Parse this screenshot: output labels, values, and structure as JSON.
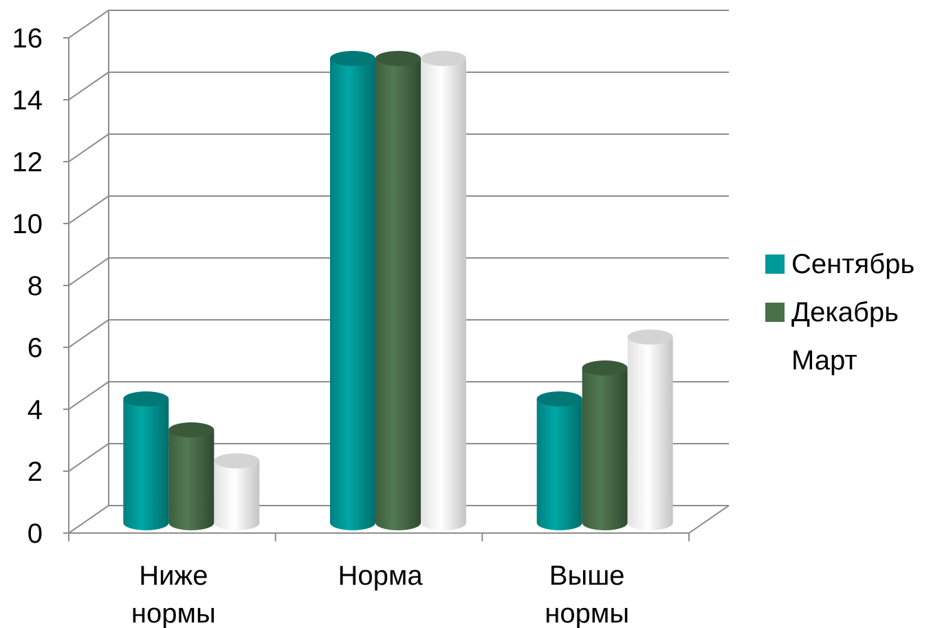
{
  "chart_data": {
    "type": "bar",
    "title": "",
    "xlabel": "",
    "ylabel": "",
    "ylim": [
      0,
      16
    ],
    "yticks": [
      0,
      2,
      4,
      6,
      8,
      10,
      12,
      14,
      16
    ],
    "grid": true,
    "legend_position": "right",
    "categories": [
      [
        "Ниже",
        "нормы"
      ],
      [
        "Норма"
      ],
      [
        "Выше",
        "нормы"
      ]
    ],
    "series": [
      {
        "name": "Сентябрь",
        "values": [
          4,
          15,
          4
        ],
        "color": "#009a9a"
      },
      {
        "name": "Декабрь",
        "values": [
          3,
          15,
          5
        ],
        "color": "#4a704a"
      },
      {
        "name": "Март",
        "values": [
          2,
          15,
          6
        ],
        "color": "#ffffff"
      }
    ]
  }
}
